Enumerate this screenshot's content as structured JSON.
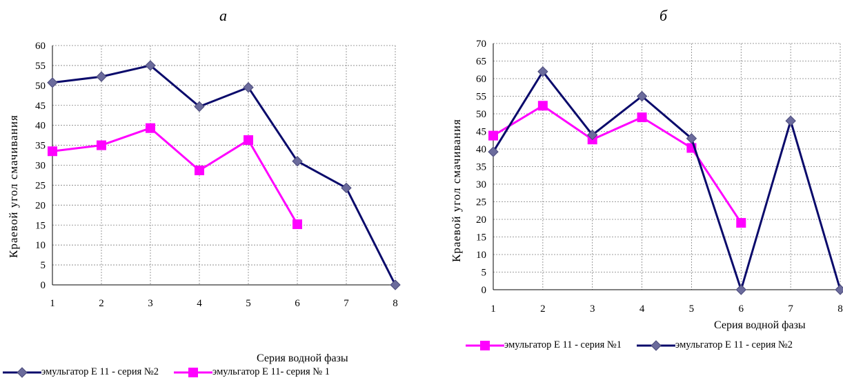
{
  "chart_data": [
    {
      "type": "line",
      "title": "а",
      "xlabel": "Серия водной фазы",
      "ylabel": "Краевой угол смачивания",
      "ylim": [
        0,
        60
      ],
      "yticks": [
        0,
        5,
        10,
        15,
        20,
        25,
        30,
        35,
        40,
        45,
        50,
        55,
        60
      ],
      "categories": [
        "1",
        "2",
        "3",
        "4",
        "5",
        "6",
        "7",
        "8"
      ],
      "grid": true,
      "legend_placement": "bottom",
      "series": [
        {
          "name": "эмульгатор Е 11 - серия №2",
          "color": "#0a0a6b",
          "marker": "diamond",
          "values": [
            50.7,
            52.2,
            55.0,
            44.7,
            49.5,
            31.0,
            24.3,
            0
          ]
        },
        {
          "name": "эмульгатор Е 11- серия № 1",
          "color": "#ff00ff",
          "marker": "square",
          "values": [
            33.5,
            35.0,
            39.3,
            28.7,
            36.3,
            15.2,
            null,
            null
          ]
        }
      ]
    },
    {
      "type": "line",
      "title": "б",
      "xlabel": "Серия водной фазы",
      "ylabel": "Краевой угол смачивания",
      "ylim": [
        0,
        70
      ],
      "yticks": [
        0,
        5,
        10,
        15,
        20,
        25,
        30,
        35,
        40,
        45,
        50,
        55,
        60,
        65,
        70
      ],
      "categories": [
        "1",
        "2",
        "3",
        "4",
        "5",
        "6",
        "7",
        "8"
      ],
      "grid": true,
      "legend_placement": "bottom",
      "series": [
        {
          "name": "эмульгатор Е 11 - серия №1",
          "color": "#ff00ff",
          "marker": "square",
          "values": [
            43.8,
            52.3,
            42.7,
            49.0,
            40.3,
            19.0,
            null,
            null
          ]
        },
        {
          "name": "эмульгатор Е 11 - серия №2",
          "color": "#0a0a6b",
          "marker": "diamond",
          "values": [
            39.2,
            62.0,
            44.0,
            55.0,
            43.0,
            0,
            48.0,
            0
          ]
        }
      ]
    }
  ]
}
